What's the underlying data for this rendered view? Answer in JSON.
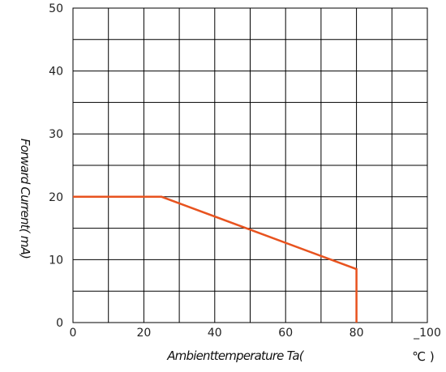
{
  "chart_data": {
    "type": "line",
    "xlabel": "Ambienttemperature Ta(",
    "xunit": "℃ )",
    "ylabel": "Forward Current(  mA)",
    "xlim": [
      0,
      100
    ],
    "ylim": [
      0,
      50
    ],
    "x_ticks": [
      0,
      20,
      40,
      60,
      80,
      100
    ],
    "x_tick_labels": [
      "0",
      "20",
      "40",
      "60",
      "80",
      "_100"
    ],
    "y_ticks": [
      0,
      10,
      20,
      30,
      40,
      50
    ],
    "y_tick_labels": [
      "0",
      "10",
      "20",
      "30",
      "40",
      "50"
    ],
    "grid": true,
    "grid_x_step": 10,
    "grid_y_step": 5,
    "series": [
      {
        "color": "#e8531f",
        "x": [
          0,
          25,
          80,
          80
        ],
        "y": [
          20,
          20,
          8.5,
          0
        ]
      }
    ]
  }
}
